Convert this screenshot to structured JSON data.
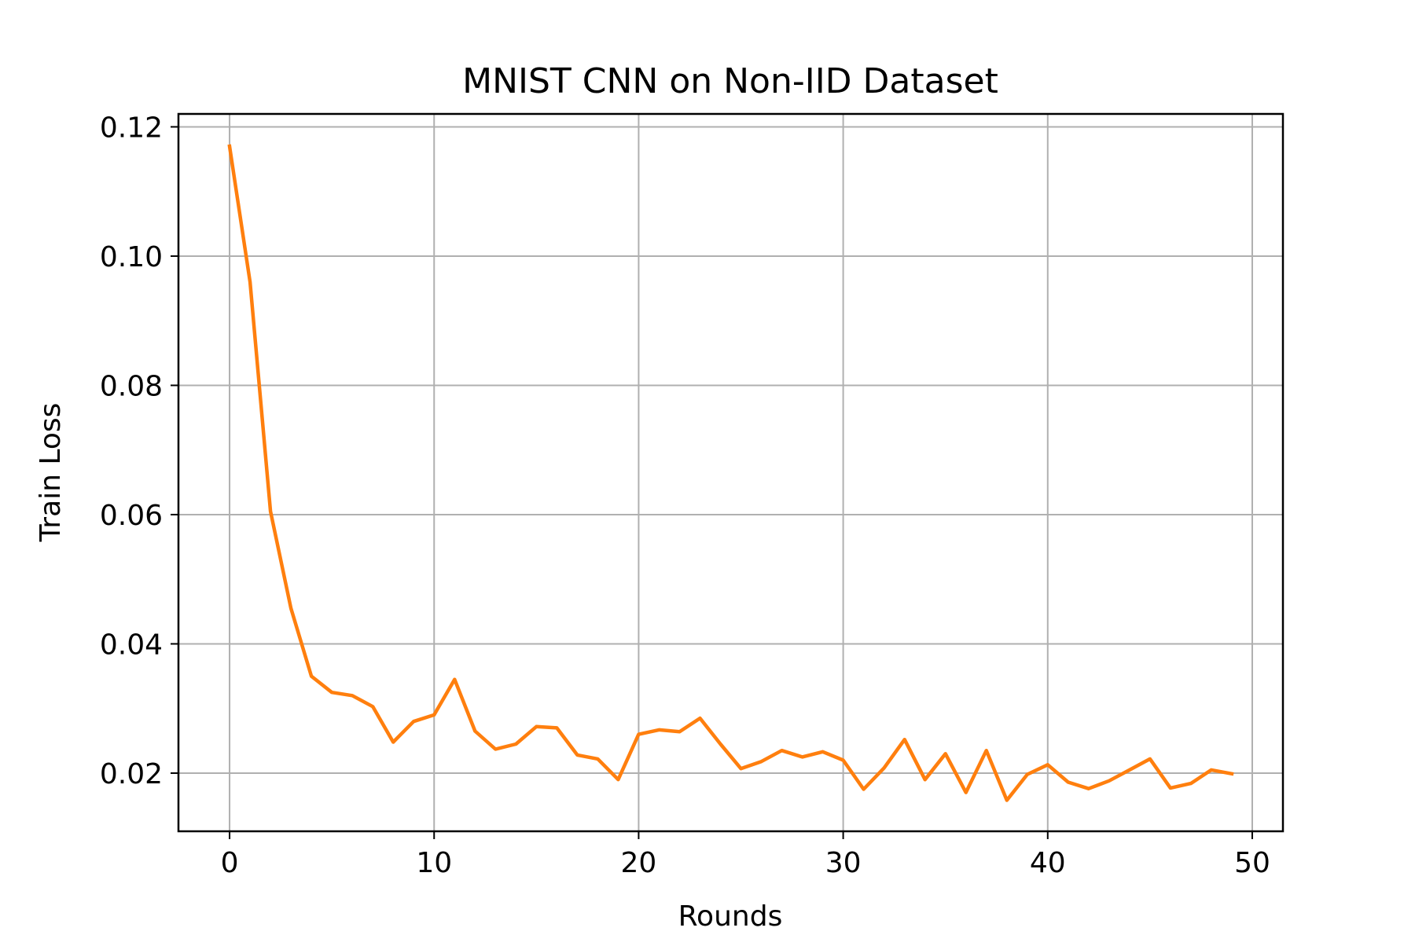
{
  "chart_data": {
    "type": "line",
    "title": "MNIST CNN on Non-IID Dataset",
    "xlabel": "Rounds",
    "ylabel": "Train Loss",
    "xlim": [
      -2.5,
      51.5
    ],
    "ylim": [
      0.011,
      0.122
    ],
    "xticks": [
      0,
      10,
      20,
      30,
      40,
      50
    ],
    "yticks": [
      0.02,
      0.04,
      0.06,
      0.08,
      0.1,
      0.12
    ],
    "xtick_labels": [
      "0",
      "10",
      "20",
      "30",
      "40",
      "50"
    ],
    "ytick_labels": [
      "0.02",
      "0.04",
      "0.06",
      "0.08",
      "0.10",
      "0.12"
    ],
    "grid": true,
    "series": [
      {
        "color": "#ff7f0e",
        "x": [
          0,
          1,
          2,
          3,
          4,
          5,
          6,
          7,
          8,
          9,
          10,
          11,
          12,
          13,
          14,
          15,
          16,
          17,
          18,
          19,
          20,
          21,
          22,
          23,
          24,
          25,
          26,
          27,
          28,
          29,
          30,
          31,
          32,
          33,
          34,
          35,
          36,
          37,
          38,
          39,
          40,
          41,
          42,
          43,
          44,
          45,
          46,
          47,
          48,
          49
        ],
        "y": [
          0.117,
          0.096,
          0.0605,
          0.0455,
          0.035,
          0.0325,
          0.032,
          0.0303,
          0.0248,
          0.028,
          0.029,
          0.0345,
          0.0265,
          0.0237,
          0.0245,
          0.0272,
          0.027,
          0.0228,
          0.0222,
          0.019,
          0.026,
          0.0267,
          0.0264,
          0.0285,
          0.0245,
          0.0207,
          0.0218,
          0.0235,
          0.0225,
          0.0233,
          0.022,
          0.0175,
          0.0208,
          0.0252,
          0.019,
          0.023,
          0.017,
          0.0235,
          0.0158,
          0.0198,
          0.0213,
          0.0186,
          0.0176,
          0.0188,
          0.0205,
          0.0222,
          0.0177,
          0.0184,
          0.0205,
          0.0199
        ]
      }
    ]
  }
}
